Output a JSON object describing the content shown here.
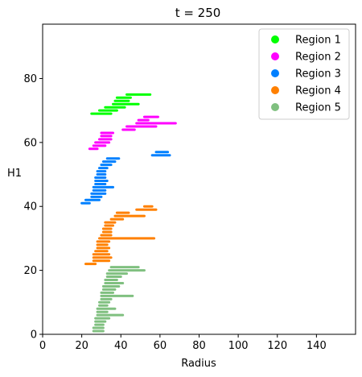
{
  "chart_data": {
    "type": "scatter",
    "title": "t = 250",
    "xlabel": "Radius",
    "ylabel": "H1",
    "xlim": [
      0,
      160
    ],
    "ylim": [
      0,
      97
    ],
    "xticks": [
      0,
      20,
      40,
      60,
      80,
      100,
      120,
      140
    ],
    "yticks": [
      0,
      20,
      40,
      60,
      80
    ],
    "grid": false,
    "legend_position": "top-right",
    "series": [
      {
        "name": "Region 1",
        "color": "#00ff00",
        "segments": [
          {
            "y": 75,
            "x": [
              43,
              55
            ]
          },
          {
            "y": 74,
            "x": [
              38,
              45
            ]
          },
          {
            "y": 73,
            "x": [
              37,
              44
            ]
          },
          {
            "y": 72,
            "x": [
              36,
              49
            ]
          },
          {
            "y": 71,
            "x": [
              32,
              42
            ]
          },
          {
            "y": 70,
            "x": [
              29,
              38
            ]
          },
          {
            "y": 69,
            "x": [
              25,
              35
            ]
          }
        ]
      },
      {
        "name": "Region 2",
        "color": "#ff00ff",
        "segments": [
          {
            "y": 68,
            "x": [
              52,
              59
            ]
          },
          {
            "y": 67,
            "x": [
              49,
              54
            ]
          },
          {
            "y": 66,
            "x": [
              48,
              68
            ]
          },
          {
            "y": 65,
            "x": [
              43,
              58
            ]
          },
          {
            "y": 64,
            "x": [
              41,
              47
            ]
          },
          {
            "y": 63,
            "x": [
              30,
              36
            ]
          },
          {
            "y": 62,
            "x": [
              30,
              35
            ]
          },
          {
            "y": 61,
            "x": [
              29,
              35
            ]
          },
          {
            "y": 60,
            "x": [
              27,
              34
            ]
          },
          {
            "y": 59,
            "x": [
              26,
              32
            ]
          },
          {
            "y": 58,
            "x": [
              24,
              28
            ]
          }
        ]
      },
      {
        "name": "Region 3",
        "color": "#0080ff",
        "segments": [
          {
            "y": 57,
            "x": [
              58,
              64
            ]
          },
          {
            "y": 56,
            "x": [
              56,
              65
            ]
          },
          {
            "y": 55,
            "x": [
              33,
              39
            ]
          },
          {
            "y": 54,
            "x": [
              31,
              37
            ]
          },
          {
            "y": 53,
            "x": [
              30,
              35
            ]
          },
          {
            "y": 52,
            "x": [
              29,
              33
            ]
          },
          {
            "y": 51,
            "x": [
              28,
              32
            ]
          },
          {
            "y": 50,
            "x": [
              28,
              32
            ]
          },
          {
            "y": 49,
            "x": [
              27,
              32
            ]
          },
          {
            "y": 48,
            "x": [
              27,
              33
            ]
          },
          {
            "y": 47,
            "x": [
              27,
              32
            ]
          },
          {
            "y": 46,
            "x": [
              26,
              36
            ]
          },
          {
            "y": 45,
            "x": [
              26,
              32
            ]
          },
          {
            "y": 44,
            "x": [
              25,
              32
            ]
          },
          {
            "y": 43,
            "x": [
              25,
              30
            ]
          },
          {
            "y": 42,
            "x": [
              22,
              29
            ]
          },
          {
            "y": 41,
            "x": [
              20,
              24
            ]
          }
        ]
      },
      {
        "name": "Region 4",
        "color": "#ff8000",
        "segments": [
          {
            "y": 40,
            "x": [
              52,
              56
            ]
          },
          {
            "y": 39,
            "x": [
              48,
              58
            ]
          },
          {
            "y": 38,
            "x": [
              38,
              44
            ]
          },
          {
            "y": 37,
            "x": [
              37,
              52
            ]
          },
          {
            "y": 36,
            "x": [
              35,
              41
            ]
          },
          {
            "y": 35,
            "x": [
              32,
              37
            ]
          },
          {
            "y": 34,
            "x": [
              32,
              36
            ]
          },
          {
            "y": 33,
            "x": [
              31,
              35
            ]
          },
          {
            "y": 32,
            "x": [
              31,
              35
            ]
          },
          {
            "y": 31,
            "x": [
              30,
              35
            ]
          },
          {
            "y": 30,
            "x": [
              29,
              57
            ]
          },
          {
            "y": 29,
            "x": [
              28,
              34
            ]
          },
          {
            "y": 28,
            "x": [
              28,
              33
            ]
          },
          {
            "y": 27,
            "x": [
              28,
              34
            ]
          },
          {
            "y": 26,
            "x": [
              27,
              33
            ]
          },
          {
            "y": 25,
            "x": [
              26,
              34
            ]
          },
          {
            "y": 24,
            "x": [
              26,
              35
            ]
          },
          {
            "y": 23,
            "x": [
              26,
              34
            ]
          },
          {
            "y": 22,
            "x": [
              22,
              27
            ]
          }
        ]
      },
      {
        "name": "Region 5",
        "color": "#80c080",
        "segments": [
          {
            "y": 21,
            "x": [
              35,
              49
            ]
          },
          {
            "y": 20,
            "x": [
              34,
              52
            ]
          },
          {
            "y": 19,
            "x": [
              33,
              43
            ]
          },
          {
            "y": 18,
            "x": [
              33,
              40
            ]
          },
          {
            "y": 17,
            "x": [
              32,
              38
            ]
          },
          {
            "y": 16,
            "x": [
              32,
              41
            ]
          },
          {
            "y": 15,
            "x": [
              31,
              39
            ]
          },
          {
            "y": 14,
            "x": [
              31,
              37
            ]
          },
          {
            "y": 13,
            "x": [
              30,
              36
            ]
          },
          {
            "y": 12,
            "x": [
              30,
              46
            ]
          },
          {
            "y": 11,
            "x": [
              30,
              35
            ]
          },
          {
            "y": 10,
            "x": [
              29,
              34
            ]
          },
          {
            "y": 9,
            "x": [
              29,
              33
            ]
          },
          {
            "y": 8,
            "x": [
              28,
              37
            ]
          },
          {
            "y": 7,
            "x": [
              28,
              33
            ]
          },
          {
            "y": 6,
            "x": [
              28,
              41
            ]
          },
          {
            "y": 5,
            "x": [
              27,
              34
            ]
          },
          {
            "y": 4,
            "x": [
              27,
              32
            ]
          },
          {
            "y": 3,
            "x": [
              27,
              31
            ]
          },
          {
            "y": 2,
            "x": [
              26,
              31
            ]
          },
          {
            "y": 1,
            "x": [
              26,
              31
            ]
          }
        ]
      }
    ]
  }
}
